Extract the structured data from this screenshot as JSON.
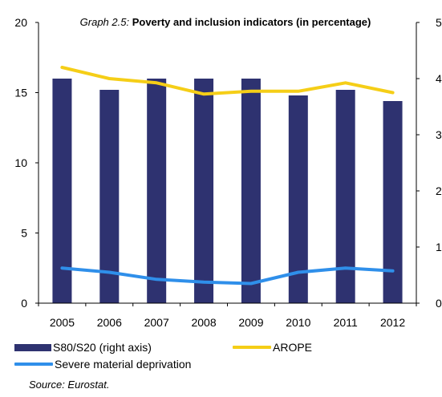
{
  "title": {
    "prefix": "Graph 2.5:",
    "main": "Poverty and inclusion indicators (in percentage)"
  },
  "source": "Source: Eurostat.",
  "colors": {
    "bars": "#2E3270",
    "arope": "#F5CE17",
    "severe": "#2F8FEA"
  },
  "chart_data": {
    "type": "bar",
    "categories": [
      "2005",
      "2006",
      "2007",
      "2008",
      "2009",
      "2010",
      "2011",
      "2012"
    ],
    "left_axis": {
      "ylim": [
        0,
        20
      ],
      "ticks": [
        "0",
        "5",
        "10",
        "15",
        "20"
      ]
    },
    "right_axis": {
      "ylim": [
        0,
        5
      ],
      "ticks": [
        "0",
        "1",
        "2",
        "3",
        "4",
        "5"
      ],
      "visible_ticks": [
        "0",
        "1",
        "2",
        "3",
        "4",
        "5"
      ]
    },
    "grid": false,
    "legend_position": "bottom",
    "series": [
      {
        "name": "S80/S20 (right axis)",
        "type": "bar",
        "axis": "right",
        "values": [
          4.0,
          3.8,
          4.0,
          4.0,
          4.0,
          3.7,
          3.8,
          3.6
        ]
      },
      {
        "name": "AROPE",
        "type": "line",
        "axis": "left",
        "values": [
          16.8,
          16.0,
          15.7,
          14.9,
          15.1,
          15.1,
          15.7,
          15.0
        ]
      },
      {
        "name": "Severe material deprivation",
        "type": "line",
        "axis": "left",
        "values": [
          2.5,
          2.2,
          1.7,
          1.5,
          1.4,
          2.2,
          2.5,
          2.3
        ]
      }
    ]
  }
}
